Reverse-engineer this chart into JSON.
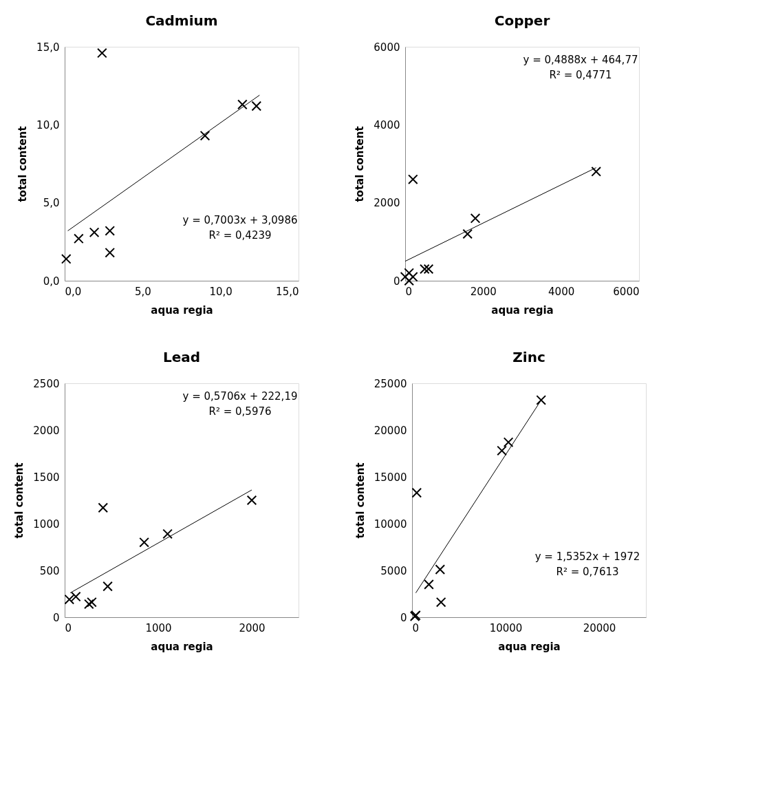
{
  "chart_data": [
    {
      "type": "scatter",
      "title": "Cadmium",
      "xlabel": "aqua regia",
      "ylabel": "total content",
      "xlim": [
        0,
        15
      ],
      "ylim": [
        0,
        15
      ],
      "xticks": [
        {
          "value": 0,
          "label": "0,0"
        },
        {
          "value": 5,
          "label": "5,0"
        },
        {
          "value": 10,
          "label": "10,0"
        },
        {
          "value": 15,
          "label": "15,0"
        }
      ],
      "yticks": [
        {
          "value": 0,
          "label": "0,0"
        },
        {
          "value": 5,
          "label": "5,0"
        },
        {
          "value": 10,
          "label": "10,0"
        },
        {
          "value": 15,
          "label": "15,0"
        }
      ],
      "grid": false,
      "annotations": [
        "y = 0,7003x + 3,0986",
        "R² = 0,4239"
      ],
      "series": [
        {
          "marker": "cross",
          "color": "#000000",
          "x": [
            2.4,
            11.4,
            12.3,
            9.0,
            1.9,
            2.9,
            0.9,
            2.9,
            0.1
          ],
          "values": [
            14.6,
            11.3,
            11.2,
            9.3,
            3.1,
            3.2,
            2.7,
            1.8,
            1.4
          ]
        },
        {
          "type": "line",
          "marker": "none",
          "color": "#000000",
          "x": [
            0.2,
            12.5
          ],
          "values": [
            3.2,
            11.9
          ]
        }
      ]
    },
    {
      "type": "scatter",
      "title": "Copper",
      "xlabel": "aqua regia",
      "ylabel": "total content",
      "xlim": [
        0,
        6000
      ],
      "ylim": [
        0,
        6000
      ],
      "xticks": [
        0,
        2000,
        4000,
        6000
      ],
      "yticks": [
        0,
        2000,
        4000,
        6000
      ],
      "grid": false,
      "annotations": [
        "y = 0,4888x + 464,77",
        "R² = 0,4771"
      ],
      "series": [
        {
          "marker": "cross",
          "color": "#000000",
          "x": [
            4900,
            200,
            1800,
            1600,
            500,
            600,
            0,
            100,
            100,
            200
          ],
          "values": [
            2800,
            2600,
            1600,
            1200,
            300,
            300,
            100,
            200,
            0,
            100
          ]
        },
        {
          "type": "line",
          "marker": "none",
          "color": "#000000",
          "x": [
            0,
            4900
          ],
          "values": [
            500,
            2900
          ]
        }
      ]
    },
    {
      "type": "scatter",
      "title": "Lead",
      "xlabel": "aqua regia",
      "ylabel": "total content",
      "xlim": [
        0,
        2500
      ],
      "ylim": [
        0,
        2500
      ],
      "xticks": [
        0,
        1000,
        2000
      ],
      "yticks": [
        0,
        500,
        1000,
        1500,
        2000,
        2500
      ],
      "grid": false,
      "annotations": [
        "y = 0,5706x + 222,19",
        "R² = 0,5976"
      ],
      "series": [
        {
          "marker": "cross",
          "color": "#000000",
          "x": [
            2000,
            410,
            1100,
            850,
            460,
            50,
            120,
            260,
            290
          ],
          "values": [
            1250,
            1170,
            890,
            800,
            330,
            190,
            220,
            140,
            160
          ]
        },
        {
          "type": "line",
          "marker": "none",
          "color": "#000000",
          "x": [
            60,
            2000
          ],
          "values": [
            260,
            1360
          ]
        }
      ]
    },
    {
      "type": "scatter",
      "title": "Zinc",
      "xlabel": "aqua regia",
      "ylabel": "total content",
      "xlim": [
        0,
        25000
      ],
      "ylim": [
        0,
        25000
      ],
      "xticks": [
        0,
        10000,
        20000
      ],
      "yticks": [
        0,
        5000,
        10000,
        15000,
        20000,
        25000
      ],
      "grid": false,
      "annotations": [
        "y = 1,5352x + 1972",
        "R² = 0,7613"
      ],
      "series": [
        {
          "marker": "cross",
          "color": "#000000",
          "x": [
            13800,
            10300,
            9600,
            500,
            3000,
            1800,
            3100,
            300,
            400
          ],
          "values": [
            23200,
            18700,
            17800,
            13300,
            5100,
            3500,
            1600,
            100,
            200
          ]
        },
        {
          "type": "line",
          "marker": "none",
          "color": "#000000",
          "x": [
            400,
            13800
          ],
          "values": [
            2600,
            23200
          ]
        }
      ]
    }
  ]
}
